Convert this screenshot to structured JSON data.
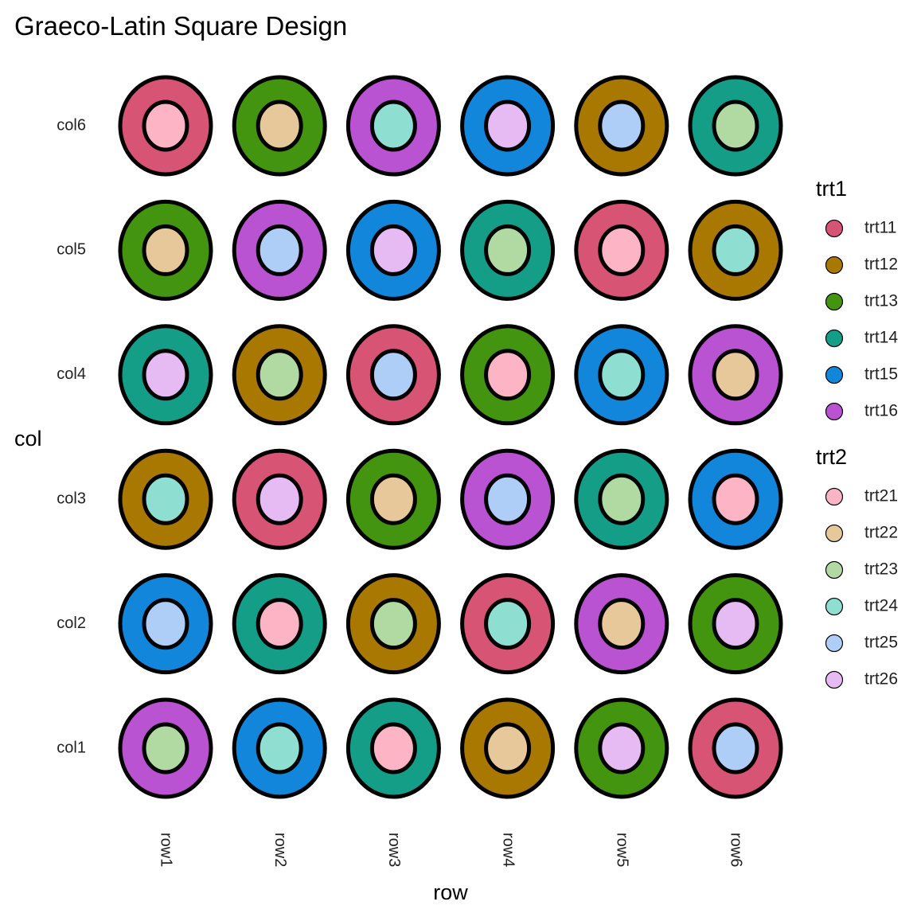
{
  "chart_data": {
    "type": "scatter",
    "title": "Graeco-Latin Square Design",
    "xlabel": "row",
    "ylabel": "col",
    "x_categories": [
      "row1",
      "row2",
      "row3",
      "row4",
      "row5",
      "row6"
    ],
    "y_categories": [
      "col1",
      "col2",
      "col3",
      "col4",
      "col5",
      "col6"
    ],
    "grid": false,
    "legend_position": "right",
    "legends": [
      {
        "title": "trt1",
        "entries": [
          {
            "label": "trt11",
            "color": "#D75474"
          },
          {
            "label": "trt12",
            "color": "#A87800"
          },
          {
            "label": "trt13",
            "color": "#43950F"
          },
          {
            "label": "trt14",
            "color": "#149E88"
          },
          {
            "label": "trt15",
            "color": "#1286DA"
          },
          {
            "label": "trt16",
            "color": "#BA53D1"
          }
        ]
      },
      {
        "title": "trt2",
        "entries": [
          {
            "label": "trt21",
            "color": "#FDB5C6"
          },
          {
            "label": "trt22",
            "color": "#E6C89A"
          },
          {
            "label": "trt23",
            "color": "#B1DAA3"
          },
          {
            "label": "trt24",
            "color": "#8EDFD2"
          },
          {
            "label": "trt25",
            "color": "#AECDF7"
          },
          {
            "label": "trt26",
            "color": "#E6BBF3"
          }
        ]
      }
    ],
    "points": [
      {
        "row": "row1",
        "col": "col1",
        "trt1": "trt16",
        "trt2": "trt23"
      },
      {
        "row": "row2",
        "col": "col1",
        "trt1": "trt15",
        "trt2": "trt24"
      },
      {
        "row": "row3",
        "col": "col1",
        "trt1": "trt14",
        "trt2": "trt21"
      },
      {
        "row": "row4",
        "col": "col1",
        "trt1": "trt12",
        "trt2": "trt22"
      },
      {
        "row": "row5",
        "col": "col1",
        "trt1": "trt13",
        "trt2": "trt26"
      },
      {
        "row": "row6",
        "col": "col1",
        "trt1": "trt11",
        "trt2": "trt25"
      },
      {
        "row": "row1",
        "col": "col2",
        "trt1": "trt15",
        "trt2": "trt25"
      },
      {
        "row": "row2",
        "col": "col2",
        "trt1": "trt14",
        "trt2": "trt21"
      },
      {
        "row": "row3",
        "col": "col2",
        "trt1": "trt12",
        "trt2": "trt23"
      },
      {
        "row": "row4",
        "col": "col2",
        "trt1": "trt11",
        "trt2": "trt24"
      },
      {
        "row": "row5",
        "col": "col2",
        "trt1": "trt16",
        "trt2": "trt22"
      },
      {
        "row": "row6",
        "col": "col2",
        "trt1": "trt13",
        "trt2": "trt26"
      },
      {
        "row": "row1",
        "col": "col3",
        "trt1": "trt12",
        "trt2": "trt24"
      },
      {
        "row": "row2",
        "col": "col3",
        "trt1": "trt11",
        "trt2": "trt26"
      },
      {
        "row": "row3",
        "col": "col3",
        "trt1": "trt13",
        "trt2": "trt22"
      },
      {
        "row": "row4",
        "col": "col3",
        "trt1": "trt16",
        "trt2": "trt25"
      },
      {
        "row": "row5",
        "col": "col3",
        "trt1": "trt14",
        "trt2": "trt23"
      },
      {
        "row": "row6",
        "col": "col3",
        "trt1": "trt15",
        "trt2": "trt21"
      },
      {
        "row": "row1",
        "col": "col4",
        "trt1": "trt14",
        "trt2": "trt26"
      },
      {
        "row": "row2",
        "col": "col4",
        "trt1": "trt12",
        "trt2": "trt23"
      },
      {
        "row": "row3",
        "col": "col4",
        "trt1": "trt11",
        "trt2": "trt25"
      },
      {
        "row": "row4",
        "col": "col4",
        "trt1": "trt13",
        "trt2": "trt21"
      },
      {
        "row": "row5",
        "col": "col4",
        "trt1": "trt15",
        "trt2": "trt24"
      },
      {
        "row": "row6",
        "col": "col4",
        "trt1": "trt16",
        "trt2": "trt22"
      },
      {
        "row": "row1",
        "col": "col5",
        "trt1": "trt13",
        "trt2": "trt22"
      },
      {
        "row": "row2",
        "col": "col5",
        "trt1": "trt16",
        "trt2": "trt25"
      },
      {
        "row": "row3",
        "col": "col5",
        "trt1": "trt15",
        "trt2": "trt26"
      },
      {
        "row": "row4",
        "col": "col5",
        "trt1": "trt14",
        "trt2": "trt23"
      },
      {
        "row": "row5",
        "col": "col5",
        "trt1": "trt11",
        "trt2": "trt21"
      },
      {
        "row": "row6",
        "col": "col5",
        "trt1": "trt12",
        "trt2": "trt24"
      },
      {
        "row": "row1",
        "col": "col6",
        "trt1": "trt11",
        "trt2": "trt21"
      },
      {
        "row": "row2",
        "col": "col6",
        "trt1": "trt13",
        "trt2": "trt22"
      },
      {
        "row": "row3",
        "col": "col6",
        "trt1": "trt16",
        "trt2": "trt24"
      },
      {
        "row": "row4",
        "col": "col6",
        "trt1": "trt15",
        "trt2": "trt26"
      },
      {
        "row": "row5",
        "col": "col6",
        "trt1": "trt12",
        "trt2": "trt25"
      },
      {
        "row": "row6",
        "col": "col6",
        "trt1": "trt14",
        "trt2": "trt23"
      }
    ]
  }
}
